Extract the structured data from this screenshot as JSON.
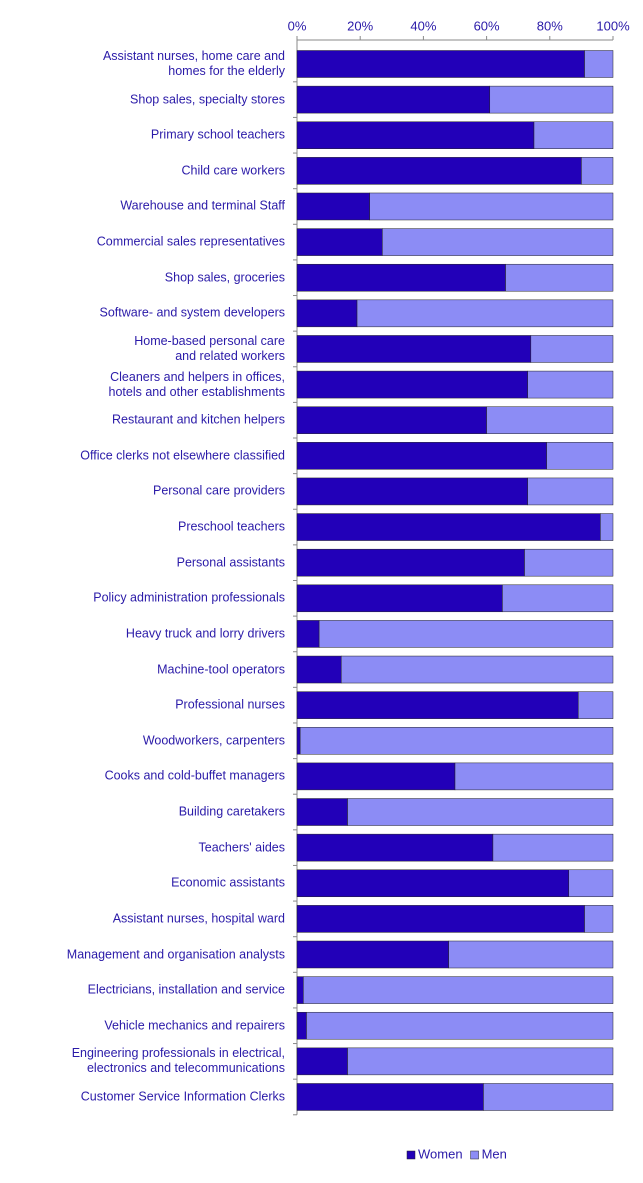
{
  "chart_data": {
    "type": "stacked_bar_horizontal",
    "categories": [
      "Assistant nurses, home care and\nhomes for the elderly",
      "Shop sales, specialty stores",
      "Primary school teachers",
      "Child care workers",
      "Warehouse and terminal Staff",
      "Commercial sales representatives",
      "Shop sales, groceries",
      "Software- and system developers",
      "Home-based personal care\nand related workers",
      "Cleaners and helpers in offices,\nhotels and other establishments",
      "Restaurant and kitchen helpers",
      "Office clerks not elsewhere classified",
      "Personal care providers",
      "Preschool teachers",
      "Personal assistants",
      "Policy administration professionals",
      "Heavy truck and lorry drivers",
      "Machine-tool operators",
      "Professional nurses",
      "Woodworkers, carpenters",
      "Cooks and cold-buffet managers",
      "Building caretakers",
      "Teachers' aides",
      "Economic assistants",
      "Assistant nurses, hospital ward",
      "Management and organisation analysts",
      "Electricians, installation and service",
      "Vehicle mechanics and repairers",
      "Engineering professionals in electrical,\nelectronics and telecommunications",
      "Customer Service Information Clerks"
    ],
    "series": [
      {
        "name": "Women",
        "color": "#2200b8",
        "values": [
          91,
          61,
          75,
          90,
          23,
          27,
          66,
          19,
          74,
          73,
          60,
          79,
          73,
          96,
          72,
          65,
          7,
          14,
          89,
          1,
          50,
          16,
          62,
          86,
          91,
          48,
          2,
          3,
          16,
          59
        ]
      },
      {
        "name": "Men",
        "color": "#8c8cf5",
        "values": [
          9,
          39,
          25,
          10,
          77,
          73,
          34,
          81,
          26,
          27,
          40,
          21,
          27,
          4,
          28,
          35,
          93,
          86,
          11,
          99,
          50,
          84,
          38,
          14,
          9,
          52,
          98,
          97,
          84,
          41
        ]
      }
    ],
    "xlim": [
      0,
      100
    ],
    "xticks": [
      {
        "value": 0,
        "label": "0%"
      },
      {
        "value": 20,
        "label": "20%"
      },
      {
        "value": 40,
        "label": "40%"
      },
      {
        "value": 60,
        "label": "60%"
      },
      {
        "value": 80,
        "label": "80%"
      },
      {
        "value": 100,
        "label": "100%"
      }
    ],
    "legend": "bottom"
  }
}
